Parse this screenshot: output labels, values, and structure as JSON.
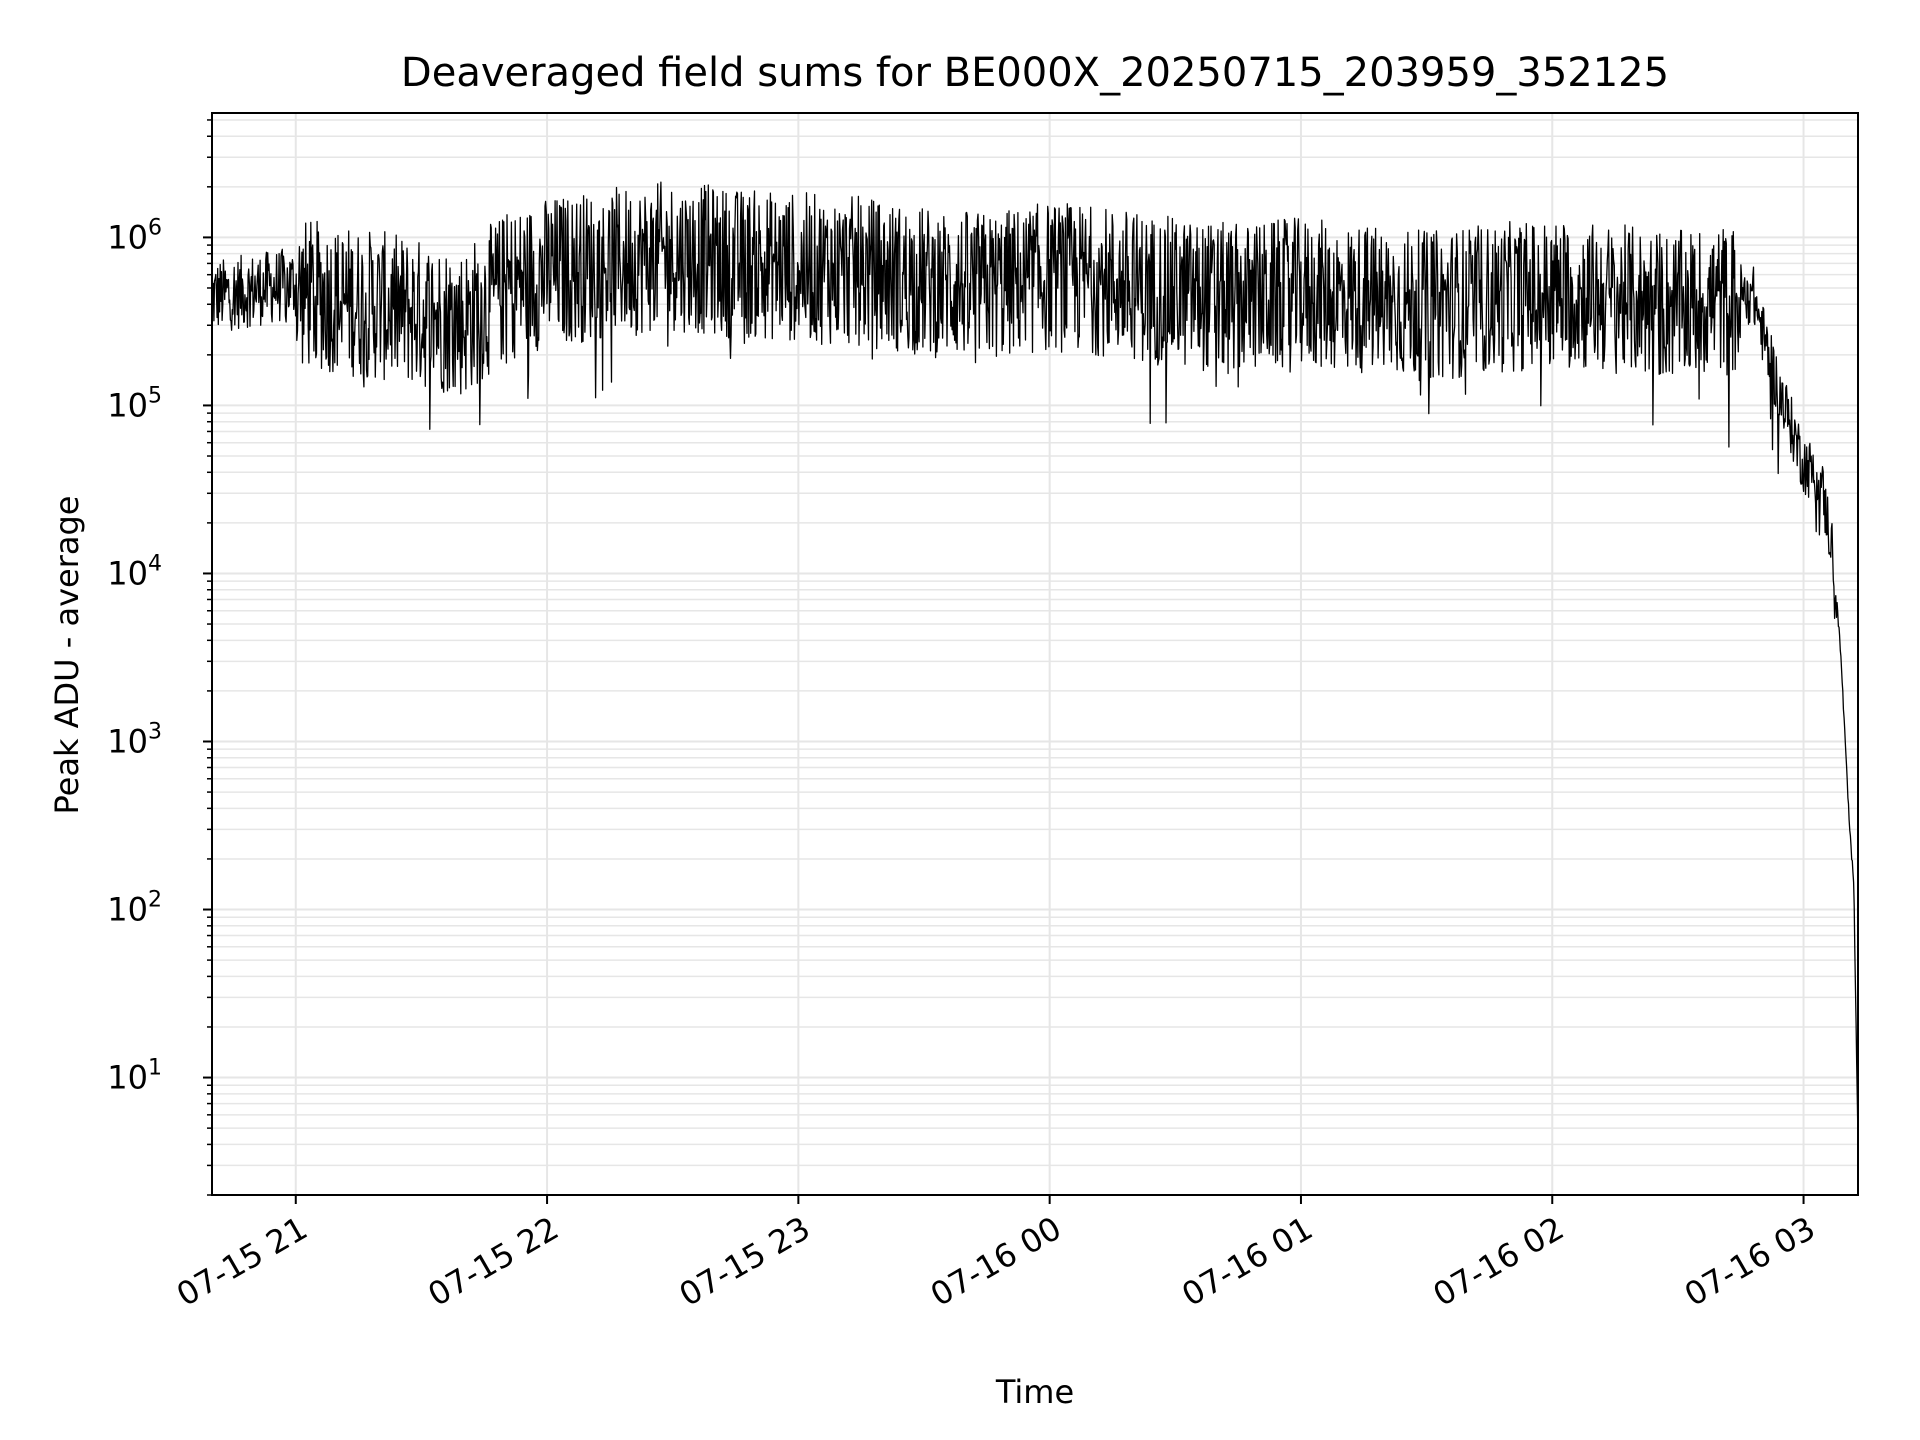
{
  "chart_data": {
    "type": "line",
    "title": "Deaveraged field sums for BE000X_20250715_203959_352125",
    "xlabel": "Time",
    "ylabel": "Peak ADU - average",
    "x_ticks": [
      "07-15 21",
      "07-15 22",
      "07-15 23",
      "07-16 00",
      "07-16 01",
      "07-16 02",
      "07-16 03"
    ],
    "x_range": [
      "2025-07-15 20:40:00",
      "2025-07-16 03:13:00"
    ],
    "y_scale": "log",
    "y_ticks": [
      {
        "base": "10",
        "exp": "1"
      },
      {
        "base": "10",
        "exp": "2"
      },
      {
        "base": "10",
        "exp": "3"
      },
      {
        "base": "10",
        "exp": "4"
      },
      {
        "base": "10",
        "exp": "5"
      },
      {
        "base": "10",
        "exp": "6"
      }
    ],
    "ylim": [
      2,
      5500000
    ],
    "grid": true,
    "line_color": "#000000",
    "grid_color": "#e6e6e6",
    "series": [
      {
        "x": [
          "2025-07-15 20:40:00",
          "2025-07-15 20:50:00",
          "2025-07-15 21:00:00",
          "2025-07-15 21:10:00",
          "2025-07-15 21:20:00",
          "2025-07-15 21:30:00",
          "2025-07-15 21:40:00",
          "2025-07-15 21:50:00",
          "2025-07-15 22:00:00",
          "2025-07-15 22:15:00",
          "2025-07-15 22:30:00",
          "2025-07-15 22:45:00",
          "2025-07-15 23:00:00",
          "2025-07-15 23:15:00",
          "2025-07-15 23:30:00",
          "2025-07-15 23:45:00",
          "2025-07-16 00:00:00",
          "2025-07-16 00:15:00",
          "2025-07-16 00:30:00",
          "2025-07-16 00:45:00",
          "2025-07-16 01:00:00",
          "2025-07-16 01:15:00",
          "2025-07-16 01:30:00",
          "2025-07-16 01:45:00",
          "2025-07-16 02:00:00",
          "2025-07-16 02:15:00",
          "2025-07-16 02:30:00",
          "2025-07-16 02:40:00",
          "2025-07-16 02:48:00",
          "2025-07-16 02:52:00",
          "2025-07-16 02:56:00",
          "2025-07-16 03:00:00",
          "2025-07-16 03:04:00",
          "2025-07-16 03:07:00",
          "2025-07-16 03:09:00",
          "2025-07-16 03:11:00",
          "2025-07-16 03:12:00",
          "2025-07-16 03:13:00"
        ],
        "y": [
          500000,
          550000,
          600000,
          550000,
          500000,
          450000,
          400000,
          650000,
          800000,
          900000,
          1000000,
          900000,
          850000,
          800000,
          700000,
          650000,
          750000,
          700000,
          600000,
          550000,
          600000,
          550000,
          500000,
          550000,
          600000,
          550000,
          500000,
          550000,
          500000,
          200000,
          100000,
          50000,
          40000,
          15000,
          3000,
          300,
          150,
          4
        ]
      }
    ]
  }
}
